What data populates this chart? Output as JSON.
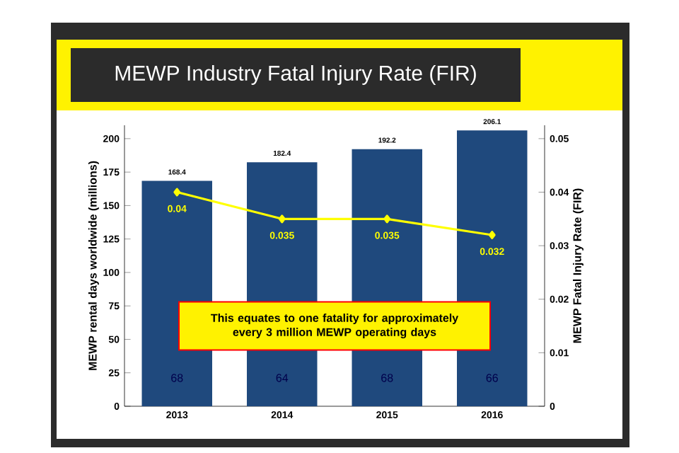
{
  "chart_data": {
    "type": "bar",
    "title": "MEWP Industry Fatal Injury Rate (FIR)",
    "ylabel": "MEWP rental days worldwide (millions)",
    "y2label": "MEWP Fatal Injury Rate (FIR)",
    "categories": [
      "2013",
      "2014",
      "2015",
      "2016"
    ],
    "series": [
      {
        "color": "#1f497d",
        "values": [
          168.4,
          182.4,
          192.2,
          206.1
        ]
      },
      {
        "type": "line",
        "axis": "y2",
        "color": "#ffff00",
        "values": [
          0.04,
          0.035,
          0.035,
          0.032
        ]
      }
    ],
    "data_labels": true,
    "marker": "diamond",
    "ylim": [
      0,
      210
    ],
    "yticks": [
      0,
      25,
      50,
      75,
      100,
      125,
      150,
      175,
      200
    ],
    "y2lim": [
      0,
      0.0525
    ],
    "y2ticks": [
      0,
      0.01,
      0.02,
      0.03,
      0.04,
      0.05
    ],
    "annotations": [
      "This equates to one fatality for approximately every 3 million MEWP operating days",
      "68",
      "64",
      "68",
      "66"
    ]
  }
}
